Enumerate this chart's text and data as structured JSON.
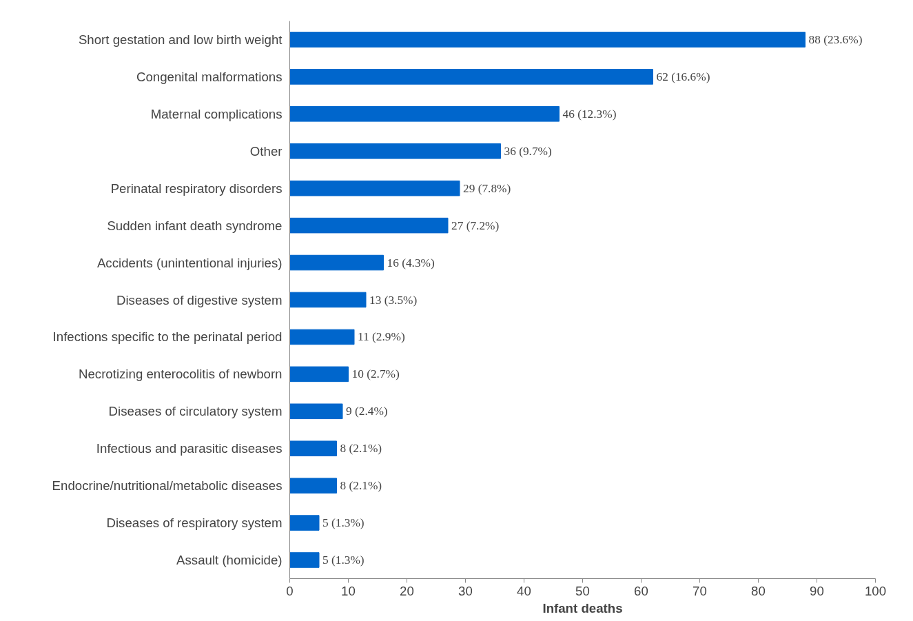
{
  "chart_data": {
    "type": "bar",
    "orientation": "horizontal",
    "xlabel": "Infant deaths",
    "categories": [
      "Short gestation and low birth weight",
      "Congenital malformations",
      "Maternal complications",
      "Other",
      "Perinatal respiratory disorders",
      "Sudden infant death syndrome",
      "Accidents (unintentional injuries)",
      "Diseases of digestive system",
      "Infections specific to the perinatal period",
      "Necrotizing enterocolitis of newborn",
      "Diseases of circulatory system",
      "Infectious and parasitic diseases",
      "Endocrine/nutritional/metabolic diseases",
      "Diseases of respiratory system",
      "Assault (homicide)"
    ],
    "values": [
      88,
      62,
      46,
      36,
      29,
      27,
      16,
      13,
      11,
      10,
      9,
      8,
      8,
      5,
      5
    ],
    "value_labels": [
      "88 (23.6%)",
      "62 (16.6%)",
      "46 (12.3%)",
      "36 (9.7%)",
      "29 (7.8%)",
      "27 (7.2%)",
      "16 (4.3%)",
      "13 (3.5%)",
      "11 (2.9%)",
      "10 (2.7%)",
      "9 (2.4%)",
      "8 (2.1%)",
      "8 (2.1%)",
      "5 (1.3%)",
      "5 (1.3%)"
    ],
    "color": "#0066cc",
    "xlim": [
      0,
      100
    ],
    "xticks": [
      0,
      10,
      20,
      30,
      40,
      50,
      60,
      70,
      80,
      90,
      100
    ],
    "grid": false
  }
}
